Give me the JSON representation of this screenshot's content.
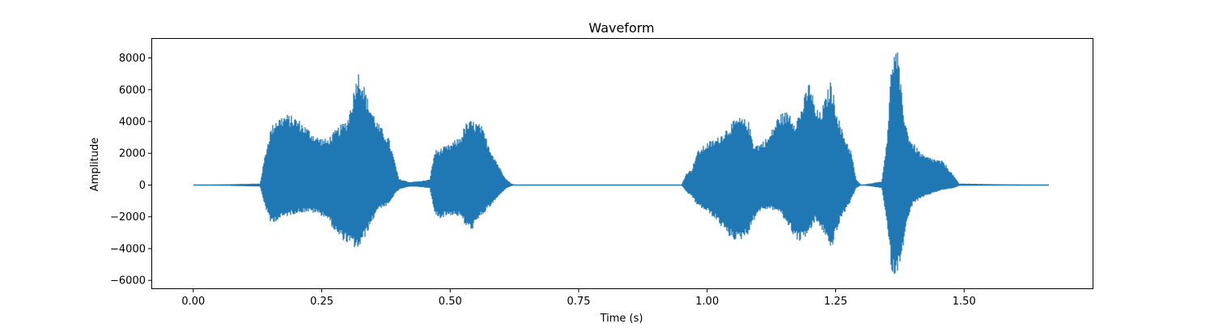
{
  "chart_data": {
    "type": "line",
    "title": "Waveform",
    "xlabel": "Time (s)",
    "ylabel": "Amplitude",
    "xlim": [
      -0.08,
      1.75
    ],
    "ylim": [
      -6500,
      9200
    ],
    "x_ticks": [
      0.0,
      0.25,
      0.5,
      0.75,
      1.0,
      1.25,
      1.5
    ],
    "x_tick_labels": [
      "0.00",
      "0.25",
      "0.50",
      "0.75",
      "1.00",
      "1.25",
      "1.50"
    ],
    "y_ticks": [
      -6000,
      -4000,
      -2000,
      0,
      2000,
      4000,
      6000,
      8000
    ],
    "y_tick_labels": [
      "−6000",
      "−4000",
      "−2000",
      "0",
      "2000",
      "4000",
      "6000",
      "8000"
    ],
    "grid": false,
    "line_color": "#1f77b4",
    "series": [
      {
        "x": [
          0.0,
          1.665
        ],
        "y": [
          0,
          0
        ],
        "envelope": {
          "time": [
            0.0,
            0.13,
            0.14,
            0.15,
            0.16,
            0.18,
            0.2,
            0.22,
            0.24,
            0.26,
            0.28,
            0.3,
            0.31,
            0.32,
            0.33,
            0.34,
            0.36,
            0.38,
            0.39,
            0.4,
            0.42,
            0.44,
            0.46,
            0.47,
            0.48,
            0.5,
            0.52,
            0.53,
            0.54,
            0.55,
            0.56,
            0.58,
            0.6,
            0.61,
            0.62,
            0.63,
            0.95,
            0.96,
            0.97,
            0.98,
            1.0,
            1.02,
            1.04,
            1.06,
            1.08,
            1.09,
            1.1,
            1.12,
            1.14,
            1.16,
            1.17,
            1.18,
            1.2,
            1.21,
            1.22,
            1.23,
            1.24,
            1.26,
            1.28,
            1.29,
            1.3,
            1.34,
            1.35,
            1.36,
            1.37,
            1.38,
            1.39,
            1.4,
            1.42,
            1.44,
            1.46,
            1.48,
            1.49,
            1.665
          ],
          "upper": [
            0,
            100,
            2000,
            3500,
            4200,
            4500,
            4300,
            3700,
            3100,
            2900,
            3600,
            4200,
            5600,
            7300,
            6600,
            5400,
            3900,
            3000,
            1800,
            400,
            200,
            250,
            350,
            2200,
            2300,
            2600,
            3100,
            3900,
            4100,
            4000,
            3800,
            2200,
            900,
            350,
            80,
            0,
            0,
            800,
            1000,
            2100,
            2700,
            3000,
            3700,
            4300,
            4100,
            2700,
            2600,
            3100,
            4500,
            4700,
            4100,
            4600,
            6700,
            4900,
            4600,
            5500,
            6600,
            3700,
            2200,
            350,
            0,
            250,
            3100,
            8300,
            8600,
            5300,
            3400,
            2700,
            1900,
            1700,
            1500,
            600,
            100,
            0
          ],
          "lower": [
            0,
            -100,
            -1400,
            -2400,
            -2300,
            -2000,
            -1800,
            -1700,
            -1800,
            -2100,
            -3200,
            -3700,
            -3900,
            -4100,
            -3600,
            -2900,
            -1500,
            -1300,
            -700,
            -300,
            -100,
            -120,
            -200,
            -1900,
            -2100,
            -1900,
            -2000,
            -2600,
            -2900,
            -2500,
            -2000,
            -1300,
            -500,
            -200,
            -50,
            0,
            0,
            -500,
            -700,
            -1300,
            -1700,
            -2300,
            -3200,
            -3600,
            -3100,
            -2300,
            -1700,
            -1500,
            -1700,
            -2700,
            -3300,
            -3600,
            -3000,
            -2300,
            -2700,
            -3200,
            -4200,
            -2200,
            -1000,
            -200,
            0,
            -200,
            -2600,
            -5700,
            -5600,
            -4100,
            -2300,
            -1200,
            -800,
            -500,
            -300,
            -200,
            -50,
            0
          ]
        }
      }
    ]
  }
}
